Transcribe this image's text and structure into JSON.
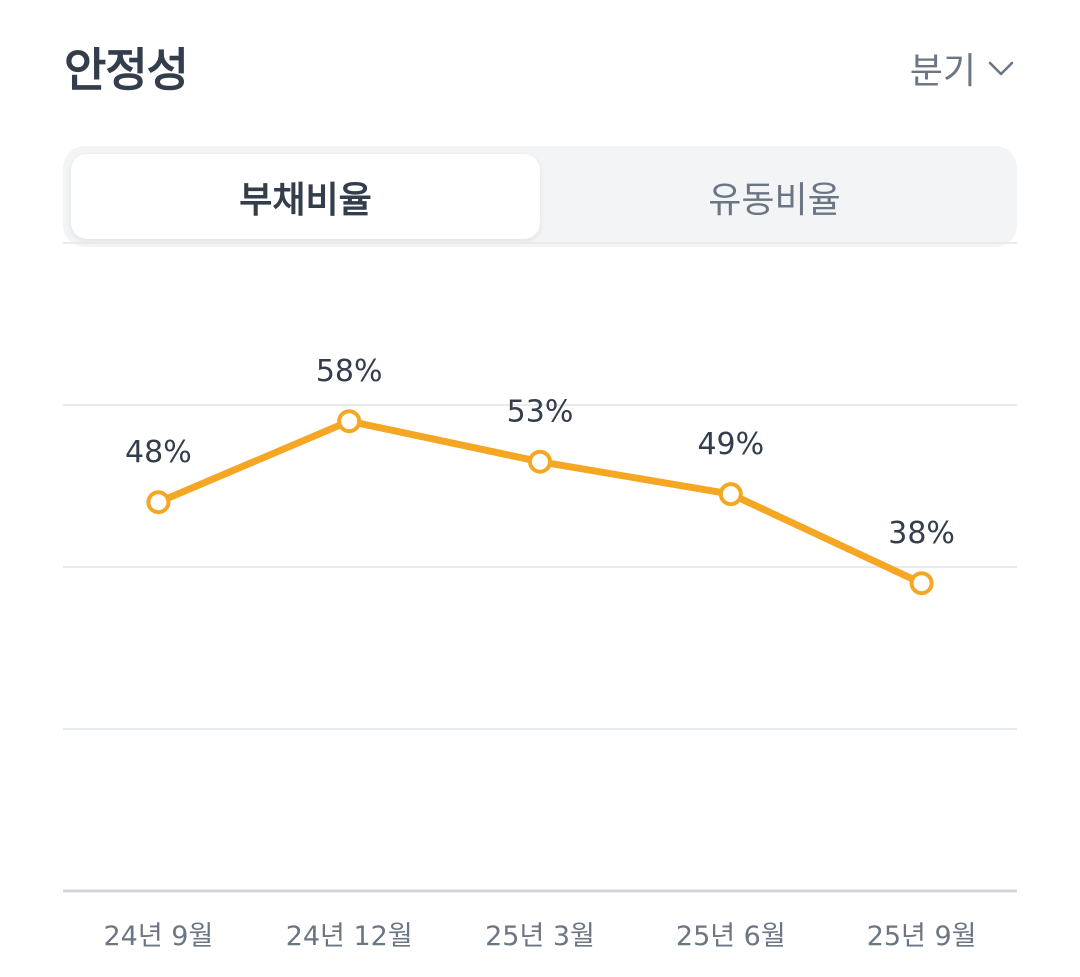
{
  "header": {
    "title": "안정성",
    "period_select": "분기"
  },
  "tabs": [
    {
      "label": "부채비율",
      "active": true
    },
    {
      "label": "유동비율",
      "active": false
    }
  ],
  "colors": {
    "accent": "#f5a623",
    "text": "#333d4b",
    "muted": "#6b7684",
    "grid": "#e8ebed",
    "axis": "#d1d6db"
  },
  "chart_data": {
    "type": "line",
    "title": "",
    "xlabel": "",
    "ylabel": "",
    "categories": [
      "24년 9월",
      "24년 12월",
      "25년 3월",
      "25년 6월",
      "25년 9월"
    ],
    "series": [
      {
        "values": [
          48,
          58,
          53,
          49,
          38
        ]
      }
    ],
    "data_labels": [
      "48%",
      "58%",
      "53%",
      "49%",
      "38%"
    ],
    "ylim": [
      0,
      100
    ],
    "grid": true,
    "legend": "none"
  }
}
